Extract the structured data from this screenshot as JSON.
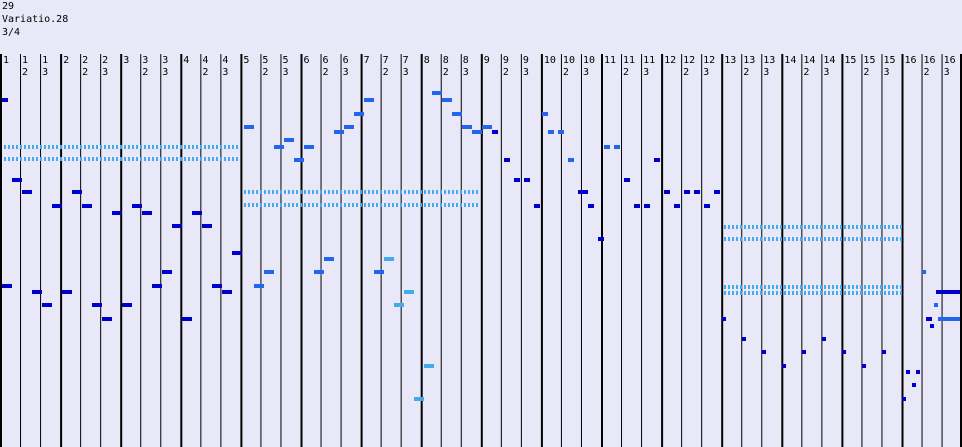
{
  "header": {
    "number": "29",
    "title": "Variatio.28",
    "time_signature": "3/4"
  },
  "colors": {
    "background": "#e8e8f8",
    "measure_line": "#000000",
    "beat_line": "#000000",
    "note_dark": "#0000cc",
    "note_mid": "#2266ee",
    "note_light": "#44aaee"
  },
  "measure_count": 16,
  "beat_labels": [
    "1",
    "2",
    "3"
  ],
  "notes_description": "piano-roll style notes in three shades of blue"
}
